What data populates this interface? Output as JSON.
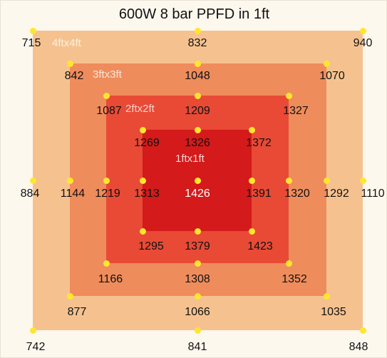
{
  "title": "600W 8 bar PPFD in 1ft",
  "colors": {
    "background": "#fdf8ee",
    "zone_4ft": "#f5c28f",
    "zone_3ft": "#ef8c5c",
    "zone_2ft": "#e84a36",
    "zone_1ft": "#d41a1a",
    "point": "#ffe62e"
  },
  "zones": {
    "z4": "4ftx4ft",
    "z3": "3ftx3ft",
    "z2": "2ftx2ft",
    "z1": "1ftx1ft"
  },
  "values": {
    "r0": [
      "715",
      "832",
      "940"
    ],
    "r1": [
      "842",
      "1048",
      "1070"
    ],
    "r2": [
      "1087",
      "1209",
      "1327"
    ],
    "r3": [
      "1269",
      "1326",
      "1372"
    ],
    "mid": [
      "884",
      "1144",
      "1219",
      "1313",
      "1426",
      "1391",
      "1320",
      "1292",
      "1110"
    ],
    "r5": [
      "1295",
      "1379",
      "1423"
    ],
    "r6": [
      "1166",
      "1308",
      "1352"
    ],
    "r7": [
      "877",
      "1066",
      "1035"
    ],
    "r8": [
      "742",
      "841",
      "848"
    ]
  }
}
